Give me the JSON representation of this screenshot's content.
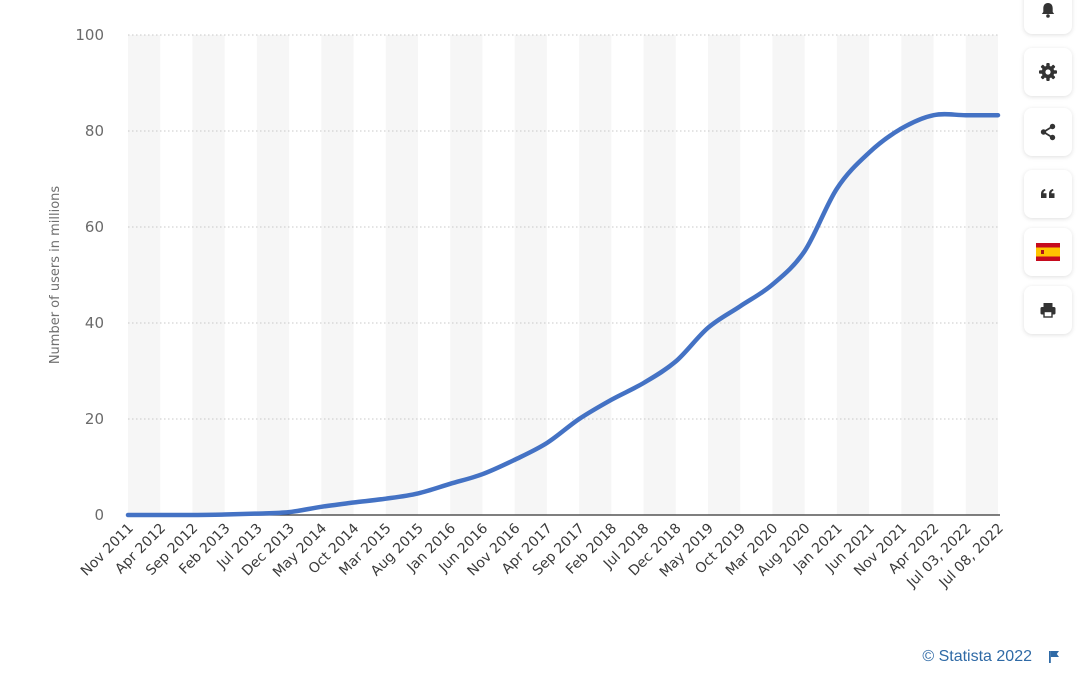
{
  "chart_data": {
    "type": "line",
    "title": "",
    "xlabel": "",
    "ylabel": "Number of users in millions",
    "ylim": [
      0,
      100
    ],
    "yticks": [
      0,
      20,
      40,
      60,
      80,
      100
    ],
    "grid": true,
    "line_color": "#4472c4",
    "categories": [
      "Nov 2011",
      "Apr 2012",
      "Sep 2012",
      "Feb 2013",
      "Jul 2013",
      "Dec 2013",
      "May 2014",
      "Oct 2014",
      "Mar 2015",
      "Aug 2015",
      "Jan 2016",
      "Jun 2016",
      "Nov 2016",
      "Apr 2017",
      "Sep 2017",
      "Feb 2018",
      "Jul 2018",
      "Dec 2018",
      "May 2019",
      "Oct 2019",
      "Mar 2020",
      "Aug 2020",
      "Jan 2021",
      "Jun 2021",
      "Nov 2021",
      "Apr 2022",
      "Jul 03, 2022",
      "Jul 08, 2022"
    ],
    "series": [
      {
        "values": [
          0,
          0,
          0,
          0.1,
          0.3,
          0.6,
          1.7,
          2.6,
          3.4,
          4.5,
          6.5,
          8.5,
          11.5,
          15,
          20,
          24,
          27.5,
          32,
          39,
          43.5,
          48,
          55,
          68,
          75.5,
          80.5,
          83.3,
          83.3,
          83.3
        ]
      }
    ]
  },
  "toolbar": {
    "icons": [
      "bell-icon",
      "gear-icon",
      "share-icon",
      "quote-icon",
      "spain-flag-icon",
      "print-icon"
    ]
  },
  "footer": {
    "credit": "© Statista 2022"
  }
}
